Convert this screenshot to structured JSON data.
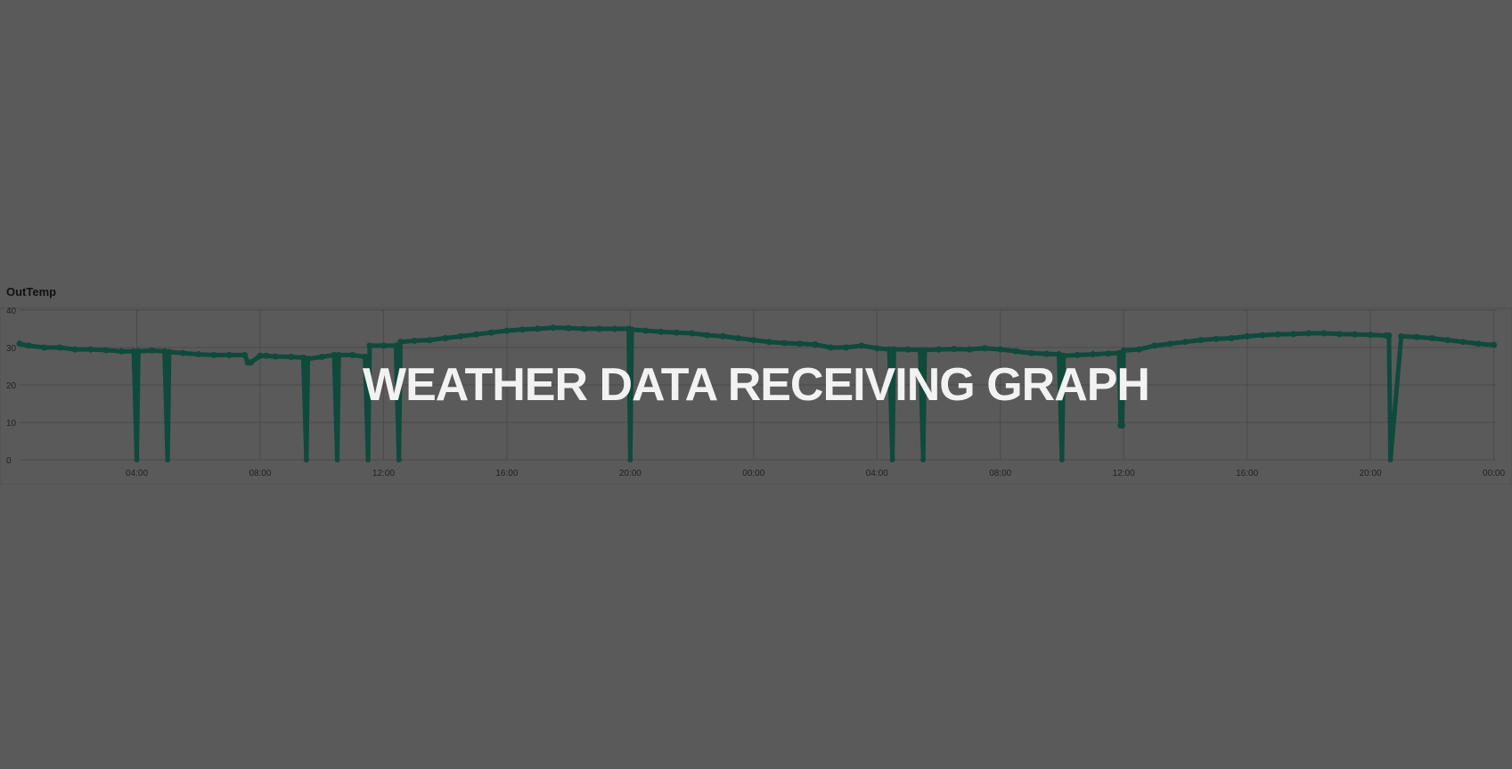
{
  "overlay": {
    "title": "WEATHER DATA RECEIVING GRAPH"
  },
  "chart_data": {
    "type": "line",
    "title": "OutTemp",
    "xlabel": "",
    "ylabel": "",
    "ylim": [
      0,
      40
    ],
    "y_ticks": [
      "0",
      "10",
      "20",
      "30",
      "40"
    ],
    "x_ticks": [
      "04:00",
      "08:00",
      "12:00",
      "16:00",
      "20:00",
      "00:00",
      "04:00",
      "08:00",
      "12:00",
      "16:00",
      "20:00",
      "00:00"
    ],
    "x_tick_hours": [
      4,
      8,
      12,
      16,
      20,
      24,
      28,
      32,
      36,
      40,
      44,
      48
    ],
    "xlim_hours": [
      0.2,
      48.1
    ],
    "grid": true,
    "legend": "none",
    "color": "#0f4a3a",
    "series": [
      {
        "x_hours": [
          0.2,
          0.5,
          1.0,
          1.5,
          2.0,
          2.5,
          3.0,
          3.5,
          3.9,
          4.0,
          4.05,
          4.5,
          4.9,
          5.0,
          5.05,
          5.5,
          6.0,
          6.5,
          7.0,
          7.5,
          7.6,
          7.7,
          8.0,
          8.2,
          8.5,
          9.0,
          9.4,
          9.5,
          9.55,
          10.0,
          10.4,
          10.5,
          10.55,
          11.0,
          11.4,
          11.5,
          11.55,
          12.0,
          12.4,
          12.5,
          12.55,
          13.0,
          13.5,
          14.0,
          14.5,
          15.0,
          15.5,
          16.0,
          16.5,
          17.0,
          17.5,
          18.0,
          18.5,
          19.0,
          19.5,
          19.95,
          20.0,
          20.05,
          20.5,
          21.0,
          21.5,
          22.0,
          22.5,
          23.0,
          23.5,
          24.0,
          24.5,
          25.0,
          25.5,
          26.0,
          26.5,
          27.0,
          27.5,
          28.0,
          28.4,
          28.5,
          28.55,
          29.0,
          29.4,
          29.5,
          29.55,
          30.0,
          30.5,
          31.0,
          31.5,
          32.0,
          32.5,
          33.0,
          33.5,
          33.9,
          34.0,
          34.05,
          34.5,
          35.0,
          35.5,
          35.85,
          35.9,
          35.95,
          36.0,
          36.5,
          37.0,
          37.5,
          38.0,
          38.5,
          39.0,
          39.5,
          40.0,
          40.5,
          41.0,
          41.5,
          42.0,
          42.5,
          43.0,
          43.5,
          44.0,
          44.5,
          44.6,
          44.65,
          45.0,
          45.5,
          46.0,
          46.5,
          47.0,
          47.5,
          48.0
        ],
        "values": [
          31,
          30.5,
          30,
          30,
          29.5,
          29.5,
          29.3,
          29,
          29,
          0,
          29,
          29.2,
          29,
          0,
          28.8,
          28.5,
          28.2,
          28,
          28,
          28,
          26,
          26,
          27.8,
          27.8,
          27.6,
          27.5,
          27.3,
          0,
          27,
          27.5,
          28,
          0,
          28,
          28,
          27.5,
          0,
          30.5,
          30.5,
          30.5,
          0,
          31.5,
          31.8,
          32,
          32.5,
          33,
          33.5,
          34,
          34.5,
          34.8,
          35,
          35.3,
          35.2,
          35,
          35,
          35,
          35,
          0,
          34.8,
          34.5,
          34.2,
          34,
          33.8,
          33.3,
          33,
          32.5,
          32,
          31.5,
          31.2,
          31,
          30.8,
          30,
          30,
          30.5,
          29.8,
          29.5,
          0,
          29.5,
          29.5,
          29.3,
          0,
          29.3,
          29.5,
          29.6,
          29.5,
          29.8,
          29.5,
          29,
          28.5,
          28.3,
          28.2,
          0,
          27.8,
          28,
          28.2,
          28.4,
          28.5,
          9.2,
          9.2,
          29.2,
          29.5,
          30.5,
          31,
          31.5,
          32,
          32.3,
          32.5,
          33,
          33.3,
          33.5,
          33.6,
          33.8,
          33.8,
          33.6,
          33.5,
          33.4,
          33.2,
          33.2,
          0,
          33,
          32.8,
          32.5,
          32,
          31.5,
          31,
          30.7
        ]
      }
    ]
  }
}
